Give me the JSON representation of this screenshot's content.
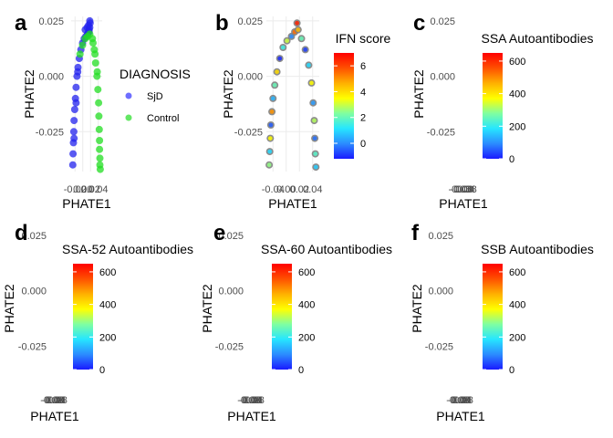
{
  "chart_data": [
    {
      "panel": "a",
      "type": "scatter",
      "xlabel": "PHATE1",
      "ylabel": "PHATE2",
      "x_tick_labels": [
        "-0.02",
        "0.00",
        "0.02",
        "0.04"
      ],
      "y_ticks": [
        -0.025,
        0.0,
        0.025
      ],
      "y_tick_labels": [
        "-0.025",
        "0.000",
        "0.025"
      ],
      "xlim": [
        -0.045,
        0.05
      ],
      "ylim": [
        -0.043,
        0.027
      ],
      "grid": true,
      "legend": {
        "type": "discrete",
        "title": "DIAGNOSIS",
        "placement": "right",
        "entries": [
          {
            "label": "SjD",
            "color": "#3030ff"
          },
          {
            "label": "Control",
            "color": "#22dd22"
          }
        ]
      },
      "series": [
        {
          "name": "SjD",
          "color": "#2222ee",
          "x": [
            -0.04,
            -0.039,
            -0.038,
            -0.037,
            -0.036,
            -0.034,
            -0.032,
            -0.03,
            -0.027,
            -0.024,
            -0.02,
            -0.015,
            -0.01,
            -0.005,
            0.0,
            0.005,
            0.008,
            0.01,
            0.012,
            0.013,
            0.012,
            0.008,
            0.004,
            -0.002,
            -0.03,
            -0.036,
            -0.025,
            0.01
          ],
          "y": [
            -0.04,
            -0.035,
            -0.03,
            -0.025,
            -0.02,
            -0.015,
            -0.01,
            -0.005,
            0.0,
            0.004,
            0.008,
            0.012,
            0.015,
            0.017,
            0.018,
            0.019,
            0.02,
            0.021,
            0.022,
            0.024,
            0.025,
            0.023,
            0.022,
            0.021,
            -0.012,
            -0.028,
            0.002,
            0.02
          ]
        },
        {
          "name": "Control",
          "color": "#22dd22",
          "x": [
            -0.018,
            -0.01,
            -0.002,
            0.005,
            0.012,
            0.02,
            0.026,
            0.03,
            0.034,
            0.037,
            0.039,
            0.04,
            0.041,
            0.042,
            0.042,
            0.043,
            0.043,
            0.044,
            0.035,
            0.028,
            0.022
          ],
          "y": [
            0.01,
            0.014,
            0.017,
            0.018,
            0.019,
            0.017,
            0.012,
            0.006,
            0.0,
            -0.006,
            -0.012,
            -0.018,
            -0.024,
            -0.029,
            -0.033,
            -0.037,
            -0.04,
            -0.042,
            0.002,
            0.01,
            0.015
          ]
        }
      ]
    },
    {
      "panel": "b",
      "type": "scatter",
      "xlabel": "PHATE1",
      "ylabel": "PHATE2",
      "x_tick_labels": [
        "-0.04",
        "0.00",
        "0.02",
        "0.04"
      ],
      "y_ticks": [
        -0.025,
        0.0,
        0.025
      ],
      "y_tick_labels": [
        "-0.025",
        "0.000",
        "0.025"
      ],
      "xlim": [
        -0.045,
        0.05
      ],
      "ylim": [
        -0.043,
        0.027
      ],
      "grid": true,
      "na_color": "#7f7f7f",
      "legend": {
        "type": "colorbar",
        "title": "IFN score",
        "placement": "right",
        "range": [
          -1.2,
          7.0
        ],
        "ticks": [
          0,
          2,
          4,
          6
        ]
      },
      "points": [
        {
          "x": -0.04,
          "y": -0.04,
          "v": 2.5
        },
        {
          "x": -0.039,
          "y": -0.034,
          "v": 1.0
        },
        {
          "x": -0.038,
          "y": -0.028,
          "v": 3.5
        },
        {
          "x": -0.037,
          "y": -0.022,
          "v": -0.5
        },
        {
          "x": -0.035,
          "y": -0.016,
          "v": 5.0
        },
        {
          "x": -0.033,
          "y": -0.01,
          "v": 0.5
        },
        {
          "x": -0.03,
          "y": -0.004,
          "v": 2.0
        },
        {
          "x": -0.026,
          "y": 0.002,
          "v": 4.0
        },
        {
          "x": -0.021,
          "y": 0.008,
          "v": -1.0
        },
        {
          "x": -0.015,
          "y": 0.013,
          "v": 1.5
        },
        {
          "x": -0.008,
          "y": 0.016,
          "v": 3.0
        },
        {
          "x": 0.0,
          "y": 0.018,
          "v": 0.0
        },
        {
          "x": 0.006,
          "y": 0.02,
          "v": 5.5
        },
        {
          "x": 0.01,
          "y": 0.024,
          "v": 6.5
        },
        {
          "x": 0.012,
          "y": 0.021,
          "v": 4.5
        },
        {
          "x": 0.018,
          "y": 0.017,
          "v": 2.0
        },
        {
          "x": 0.025,
          "y": 0.012,
          "v": -0.8
        },
        {
          "x": 0.031,
          "y": 0.005,
          "v": 1.0
        },
        {
          "x": 0.036,
          "y": -0.003,
          "v": 3.5
        },
        {
          "x": 0.039,
          "y": -0.012,
          "v": 0.2
        },
        {
          "x": 0.041,
          "y": -0.02,
          "v": 2.8
        },
        {
          "x": 0.042,
          "y": -0.028,
          "v": -0.3
        },
        {
          "x": 0.043,
          "y": -0.035,
          "v": 1.8
        },
        {
          "x": 0.044,
          "y": -0.041,
          "v": 0.8
        }
      ]
    },
    {
      "panel": "c",
      "type": "scatter",
      "xlabel": "PHATE1",
      "ylabel": "PHATE2",
      "x_tick_labels": [
        "-0.08",
        "-0.04",
        "0.00",
        "0.04",
        "0.08"
      ],
      "y_ticks": [
        -0.025,
        0.0,
        0.025
      ],
      "y_tick_labels": [
        "-0.025",
        "0.000",
        "0.025"
      ],
      "grid": false,
      "legend": {
        "type": "colorbar",
        "title": "SSA Autoantibodies",
        "placement": "right",
        "range": [
          0,
          650
        ],
        "ticks": [
          0,
          200,
          400,
          600
        ]
      }
    },
    {
      "panel": "d",
      "type": "scatter",
      "xlabel": "PHATE1",
      "ylabel": "PHATE2",
      "x_tick_labels": [
        "-0.08",
        "-0.04",
        "0.00",
        "0.04",
        "0.08"
      ],
      "y_ticks": [
        -0.025,
        0.0,
        0.025
      ],
      "y_tick_labels": [
        "-0.025",
        "0.000",
        "0.025"
      ],
      "grid": false,
      "legend": {
        "type": "colorbar",
        "title": "SSA-52 Autoantibodies",
        "placement": "right",
        "range": [
          0,
          650
        ],
        "ticks": [
          0,
          200,
          400,
          600
        ]
      }
    },
    {
      "panel": "e",
      "type": "scatter",
      "xlabel": "PHATE1",
      "ylabel": "PHATE2",
      "x_tick_labels": [
        "-0.08",
        "-0.04",
        "0.00",
        "0.04",
        "0.08"
      ],
      "y_ticks": [
        -0.025,
        0.0,
        0.025
      ],
      "y_tick_labels": [
        "-0.025",
        "0.000",
        "0.025"
      ],
      "grid": false,
      "legend": {
        "type": "colorbar",
        "title": "SSA-60 Autoantibodies",
        "placement": "right",
        "range": [
          0,
          650
        ],
        "ticks": [
          0,
          200,
          400,
          600
        ]
      }
    },
    {
      "panel": "f",
      "type": "scatter",
      "xlabel": "PHATE1",
      "ylabel": "PHATE2",
      "x_tick_labels": [
        "-0.08",
        "-0.04",
        "0.00",
        "0.04",
        "0.08"
      ],
      "y_ticks": [
        -0.025,
        0.0,
        0.025
      ],
      "y_tick_labels": [
        "-0.025",
        "0.000",
        "0.025"
      ],
      "grid": false,
      "legend": {
        "type": "colorbar",
        "title": "SSB Autoantibodies",
        "placement": "right",
        "range": [
          0,
          650
        ],
        "ticks": [
          0,
          200,
          400,
          600
        ]
      }
    }
  ],
  "colorbar_colors": [
    "#1a1aff",
    "#2b8cff",
    "#26e6ff",
    "#80ffa0",
    "#ffff00",
    "#ffb000",
    "#ff5000",
    "#ff0000"
  ]
}
